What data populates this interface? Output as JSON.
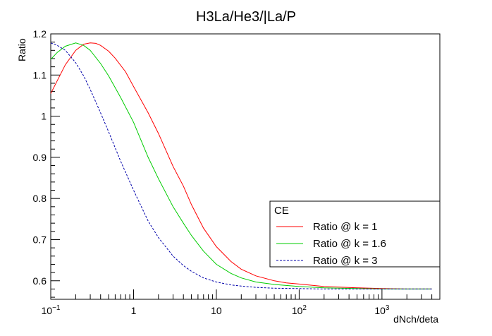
{
  "chart_data": {
    "type": "line",
    "title": "H3La/He3/|La/P",
    "xlabel": "dNch/deta",
    "ylabel": "Ratio",
    "xscale": "log",
    "xlim": [
      0.1,
      5000
    ],
    "ylim": [
      0.555,
      1.2
    ],
    "grid": false,
    "x_ticks": [
      {
        "value": 0.1,
        "base": "10",
        "exp": "−1"
      },
      {
        "value": 1,
        "base": "1",
        "exp": ""
      },
      {
        "value": 10,
        "base": "10",
        "exp": ""
      },
      {
        "value": 100,
        "base": "10",
        "exp": "2"
      },
      {
        "value": 1000,
        "base": "10",
        "exp": "3"
      }
    ],
    "y_ticks": [
      0.6,
      0.7,
      0.8,
      0.9,
      1,
      1.1,
      1.2
    ],
    "y_tick_labels": [
      "0.6",
      "0.7",
      "0.8",
      "0.9",
      "1",
      "1.1",
      "1.2"
    ],
    "legend": {
      "title": "CE",
      "position": "lower-right"
    },
    "series": [
      {
        "name": "Ratio @ k = 1",
        "color": "#ff0000",
        "dash": "solid",
        "x": [
          0.1,
          0.15,
          0.2,
          0.25,
          0.3,
          0.35,
          0.4,
          0.5,
          0.6,
          0.8,
          1,
          1.5,
          2,
          3,
          4,
          5,
          7,
          10,
          15,
          20,
          30,
          50,
          70,
          100,
          200,
          500,
          1000,
          2000,
          4000
        ],
        "y": [
          1.055,
          1.125,
          1.16,
          1.175,
          1.178,
          1.177,
          1.172,
          1.158,
          1.141,
          1.108,
          1.072,
          1.008,
          0.958,
          0.878,
          0.83,
          0.785,
          0.728,
          0.683,
          0.647,
          0.628,
          0.612,
          0.6,
          0.595,
          0.592,
          0.586,
          0.583,
          0.581,
          0.58,
          0.58
        ]
      },
      {
        "name": "Ratio @ k = 1.6",
        "color": "#00cc00",
        "dash": "solid",
        "x": [
          0.1,
          0.12,
          0.15,
          0.2,
          0.25,
          0.3,
          0.4,
          0.5,
          0.7,
          1,
          1.5,
          2,
          3,
          4,
          5,
          7,
          10,
          15,
          20,
          30,
          50,
          100,
          200,
          500,
          1000,
          2000,
          4000
        ],
        "y": [
          1.138,
          1.155,
          1.17,
          1.178,
          1.172,
          1.16,
          1.128,
          1.098,
          1.045,
          0.985,
          0.9,
          0.848,
          0.78,
          0.74,
          0.71,
          0.672,
          0.64,
          0.618,
          0.607,
          0.597,
          0.591,
          0.586,
          0.583,
          0.581,
          0.58,
          0.58,
          0.58
        ]
      },
      {
        "name": "Ratio @ k = 3",
        "color": "#0000aa",
        "dash": "dashed",
        "x": [
          0.1,
          0.12,
          0.15,
          0.2,
          0.25,
          0.3,
          0.4,
          0.5,
          0.7,
          1,
          1.5,
          2,
          3,
          4,
          5,
          7,
          10,
          15,
          20,
          30,
          50,
          100,
          200,
          500,
          1000,
          2000,
          4000
        ],
        "y": [
          1.178,
          1.172,
          1.16,
          1.13,
          1.098,
          1.065,
          1.008,
          0.962,
          0.89,
          0.82,
          0.745,
          0.705,
          0.66,
          0.637,
          0.623,
          0.607,
          0.597,
          0.59,
          0.587,
          0.584,
          0.582,
          0.581,
          0.58,
          0.58,
          0.58,
          0.58,
          0.58
        ]
      }
    ]
  }
}
